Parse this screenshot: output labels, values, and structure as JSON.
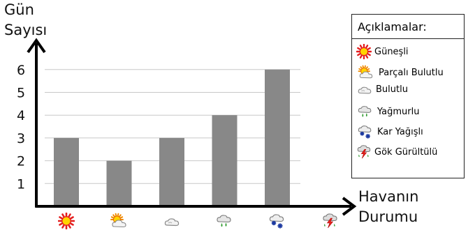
{
  "chart_data": {
    "type": "bar",
    "ylabel": "Gün Sayısı",
    "ylabel_lines": [
      "Gün",
      "Sayısı"
    ],
    "xlabel": "Havanın Durumu",
    "xlabel_lines": [
      "Havanın",
      "Durumu"
    ],
    "ylim": [
      0,
      7
    ],
    "yticks": [
      1,
      2,
      3,
      4,
      5,
      6
    ],
    "grid": true,
    "legend_position": "right",
    "categories": [
      "Güneşli",
      "Parçalı Bulutlu",
      "Bulutlu",
      "Yağmurlu",
      "Kar Yağışlı",
      "Gök Gürültülü"
    ],
    "category_icons": [
      "sun-icon",
      "partly-cloudy-icon",
      "cloudy-icon",
      "rain-icon",
      "snow-icon",
      "thunder-icon"
    ],
    "values": [
      3,
      2,
      3,
      4,
      6,
      0
    ]
  },
  "legend": {
    "title": "Açıklamalar:",
    "items": [
      {
        "label": "Güneşli",
        "icon": "sun-icon"
      },
      {
        "label": "Parçalı Bulutlu",
        "icon": "partly-cloudy-icon"
      },
      {
        "label": "Bulutlu",
        "icon": "cloudy-icon"
      },
      {
        "label": "Yağmurlu",
        "icon": "rain-icon"
      },
      {
        "label": "Kar Yağışlı",
        "icon": "snow-icon"
      },
      {
        "label": "Gök Gürültülü",
        "icon": "thunder-icon"
      }
    ]
  },
  "colors": {
    "bar": "#888888",
    "grid": "#c8c8c8",
    "axis": "#000000"
  }
}
